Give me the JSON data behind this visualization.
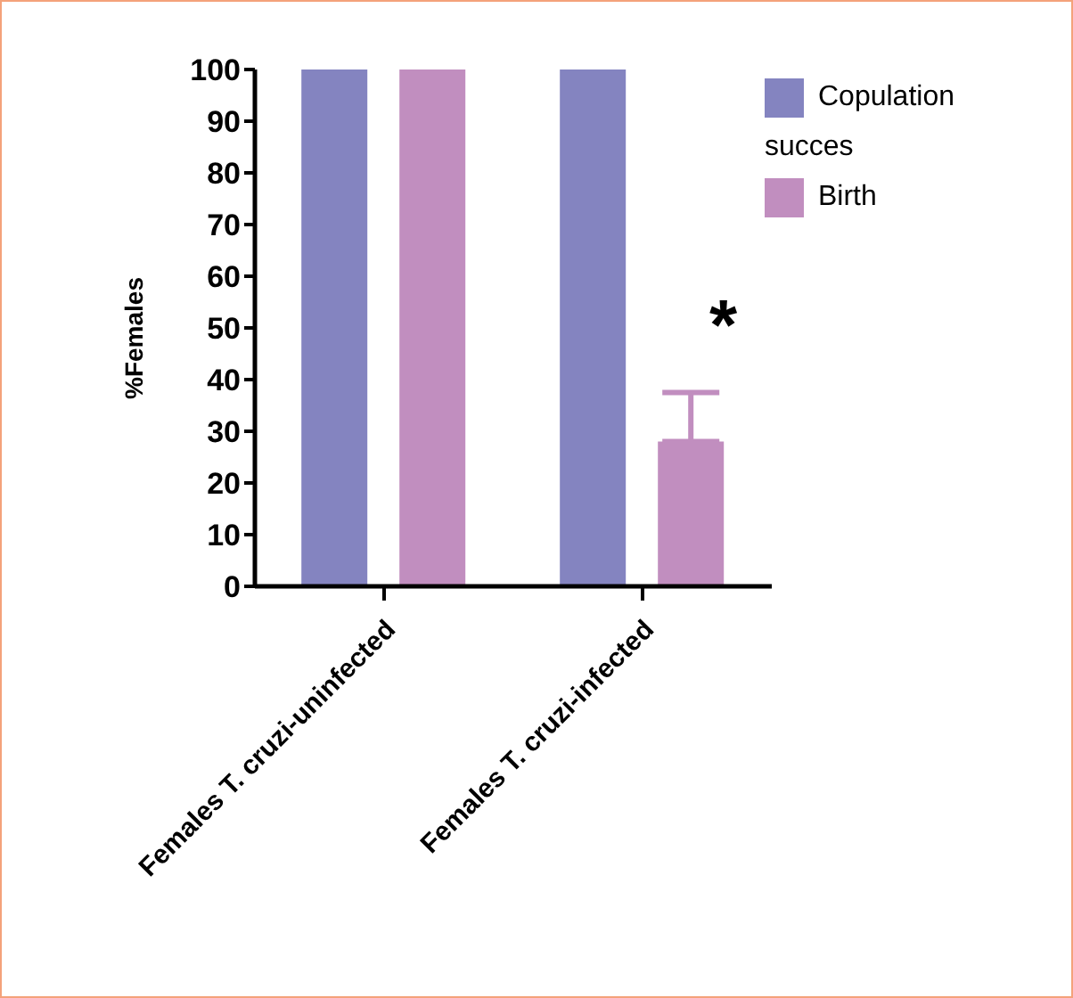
{
  "chart_data": {
    "type": "bar",
    "ylabel": "%Females",
    "categories": [
      "Females T. cruzi-uninfected",
      "Females T. cruzi-infected"
    ],
    "series": [
      {
        "name": "Copulation succes",
        "color": "#8484c0",
        "values": [
          100,
          100
        ]
      },
      {
        "name": "Birth",
        "color": "#c18ebf",
        "values": [
          100,
          28
        ],
        "errors": [
          null,
          [
            28,
            37.5
          ]
        ]
      }
    ],
    "ylim": [
      0,
      100
    ],
    "yticks": [
      0,
      10,
      20,
      30,
      40,
      50,
      60,
      70,
      80,
      90,
      100
    ],
    "grid": false,
    "legend": "top right",
    "annotations": [
      "*"
    ]
  }
}
